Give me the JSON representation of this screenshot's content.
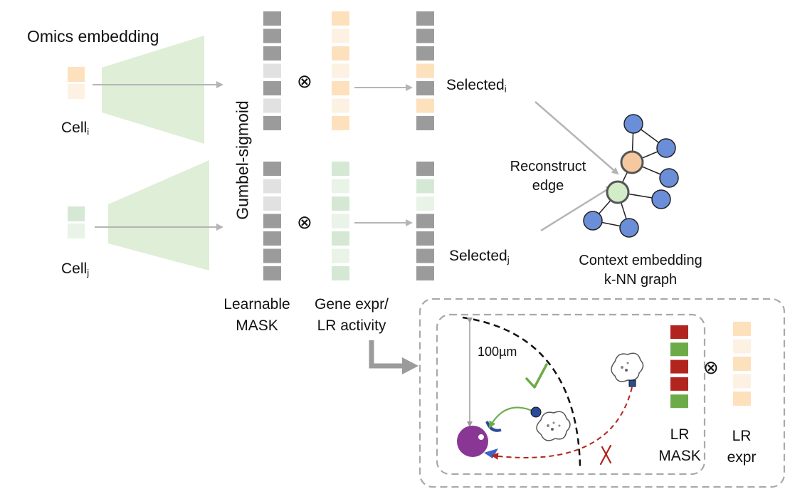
{
  "labels": {
    "omics_embedding": "Omics embedding",
    "cell": "Cell",
    "sub_i": "i",
    "sub_j": "j",
    "gumbel": "Gumbel-sigmoid",
    "selected": "Selected",
    "reconstruct": "Reconstruct",
    "edge": "edge",
    "context_line1": "Context embedding",
    "context_line2": "k-NN graph",
    "learnable": "Learnable",
    "mask": "MASK",
    "gene_expr": "Gene expr/",
    "lr_activity": "LR activity",
    "distance": "100µm",
    "lr": "LR",
    "expr": "expr"
  },
  "operators": {
    "elementwise_product": "⊗"
  },
  "icons": {
    "check": "check-icon",
    "cross": "cross-icon",
    "receiver_cell": "receiver-cell-icon",
    "sender_cell": "sender-cell-icon",
    "knn_graph": "knn-graph-icon"
  },
  "colors": {
    "orange_strong": "#fde1bd",
    "orange_light": "#fdf1e3",
    "green_strong": "#d5e8d4",
    "green_light": "#e9f3e7",
    "green_encoder": "#dfeed7",
    "mask_dark": "#9b9b9b",
    "mask_light": "#e1e1e1",
    "node_blue": "#6b8ed8",
    "node_orange": "#f6c8a0",
    "node_green": "#d3ecc8",
    "lr_red": "#b2251e",
    "lr_green": "#6dab48",
    "cell_purple": "#8a3695",
    "arrow_grey": "#b5b5b5",
    "dashed_red": "#b2251e"
  },
  "columns": {
    "cell_i": [
      "orange_strong",
      "orange_light"
    ],
    "cell_j": [
      "green_strong",
      "green_light"
    ],
    "mask_i": [
      "dark",
      "dark",
      "dark",
      "light",
      "dark",
      "light",
      "dark"
    ],
    "mask_j": [
      "dark",
      "light",
      "light",
      "dark",
      "dark",
      "dark",
      "dark"
    ],
    "gene_i": [
      "orange_strong",
      "orange_light",
      "orange_strong",
      "orange_light",
      "orange_strong",
      "orange_light",
      "orange_strong"
    ],
    "gene_j": [
      "green_strong",
      "green_light",
      "green_strong",
      "green_light",
      "green_strong",
      "green_light",
      "green_strong"
    ],
    "sel_i": [
      "dark",
      "dark",
      "dark",
      "orange_strong",
      "dark",
      "orange_strong",
      "dark"
    ],
    "sel_j": [
      "dark",
      "green_strong",
      "green_light",
      "dark",
      "dark",
      "dark",
      "dark"
    ],
    "lr_mask": [
      "red",
      "green",
      "red",
      "red",
      "green"
    ],
    "lr_expr": [
      "orange_strong",
      "orange_light",
      "orange_strong",
      "orange_light",
      "orange_strong"
    ]
  }
}
